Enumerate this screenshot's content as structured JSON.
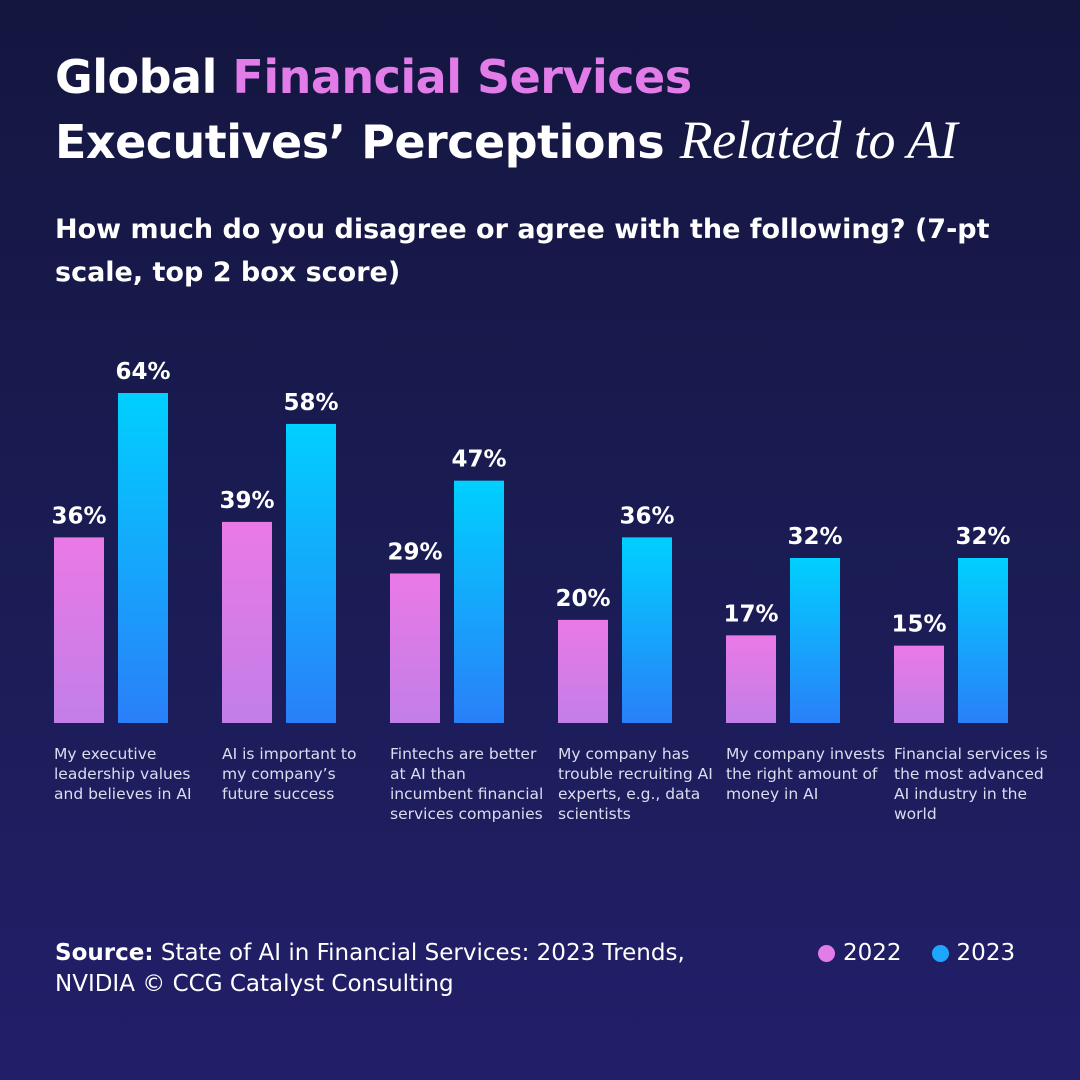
{
  "header": {
    "title_part1": "Global ",
    "title_accent": "Financial Services",
    "title_line2": "Executives’ Perceptions ",
    "title_italic": "Related to AI",
    "subtitle": "How much do you disagree or agree with the following? (7-pt scale, top 2 box score)"
  },
  "chart_data": {
    "type": "bar",
    "categories": [
      "My executive leadership values and believes in AI",
      "AI is important to my company’s future success",
      "Fintechs are better at AI than incumbent financial services companies",
      "My company has trouble recruiting AI experts, e.g., data scientists",
      "My company invests the right amount of money in AI",
      "Financial services is the most advanced AI industry in the world"
    ],
    "series": [
      {
        "name": "2022",
        "values": [
          36,
          39,
          29,
          20,
          17,
          15
        ],
        "labels": [
          "36%",
          "39%",
          "29%",
          "20%",
          "17%",
          "15%"
        ],
        "color": "#e27ce8"
      },
      {
        "name": "2023",
        "values": [
          64,
          58,
          47,
          36,
          32,
          32
        ],
        "labels": [
          "64%",
          "58%",
          "47%",
          "36%",
          "32%",
          "32%"
        ],
        "color": "#1ea6ff"
      }
    ],
    "ylim": [
      0,
      64
    ],
    "grid": false,
    "legend": "bottom-right"
  },
  "footer": {
    "source_label": "Source:",
    "source_text": " State of AI in Financial Services: 2023 Trends, NVIDIA © CCG Catalyst Consulting",
    "legend_2022": "2022",
    "legend_2023": "2023"
  }
}
